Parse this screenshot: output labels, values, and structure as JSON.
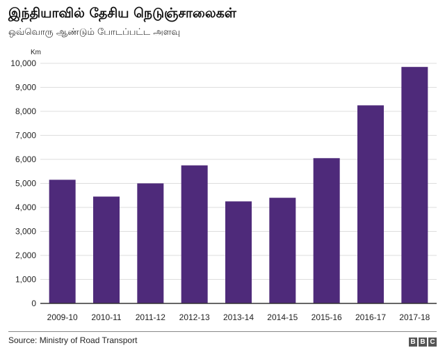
{
  "title": "இந்தியாவில் தேசிய நெடுஞ்சாலைகள்",
  "subtitle": "ஒவ்வொரு ஆண்டும் போடப்பட்ட அளவு",
  "source": "Source: Ministry of Road Transport",
  "logo": [
    "B",
    "B",
    "C"
  ],
  "colors": {
    "bar": "#4e2a7a",
    "grid": "#dddddd",
    "axis": "#333333"
  },
  "chart_data": {
    "type": "bar",
    "ylabel": "Km",
    "xlabel": "",
    "ylim": [
      0,
      10000
    ],
    "yticks": [
      0,
      1000,
      2000,
      3000,
      4000,
      5000,
      6000,
      7000,
      8000,
      9000,
      10000
    ],
    "ytick_labels": [
      "0",
      "1,000",
      "2,000",
      "3,000",
      "4,000",
      "5,000",
      "6,000",
      "7,000",
      "8,000",
      "9,000",
      "10,000"
    ],
    "grid": true,
    "categories": [
      "2009-10",
      "2010-11",
      "2011-12",
      "2012-13",
      "2013-14",
      "2014-15",
      "2015-16",
      "2016-17",
      "2017-18"
    ],
    "values": [
      5150,
      4450,
      5000,
      5750,
      4250,
      4400,
      6050,
      8250,
      9850
    ]
  }
}
